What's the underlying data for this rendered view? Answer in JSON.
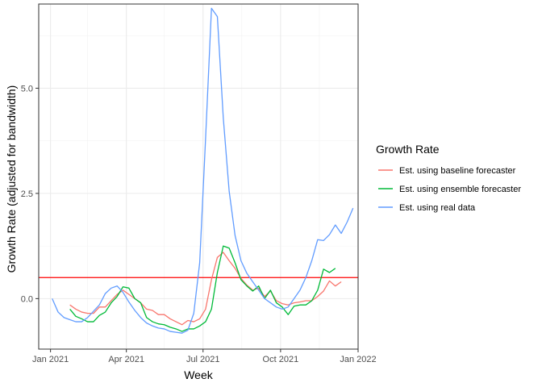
{
  "chart_data": {
    "type": "line",
    "xlabel": "Week",
    "ylabel": "Growth Rate (adjusted for bandwidth)",
    "x_ticks": [
      "Jan 2021",
      "Apr 2021",
      "Jul 2021",
      "Oct 2021",
      "Jan 2022"
    ],
    "y_ticks": [
      "0.0",
      "2.5",
      "5.0"
    ],
    "xlim": [
      "2020-12-18",
      "2022-01-01"
    ],
    "ylim": [
      -1.2,
      7.0
    ],
    "grid": true,
    "legend_title": "Growth Rate",
    "legend_position": "right",
    "hline": {
      "y": 0.5,
      "color": "#ff0000"
    },
    "series": [
      {
        "name": "Est. using baseline forecaster",
        "color": "#f8766d",
        "points": [
          [
            "2021-01-24",
            -0.15
          ],
          [
            "2021-01-31",
            -0.25
          ],
          [
            "2021-02-07",
            -0.32
          ],
          [
            "2021-02-14",
            -0.35
          ],
          [
            "2021-02-21",
            -0.35
          ],
          [
            "2021-02-28",
            -0.2
          ],
          [
            "2021-03-07",
            -0.2
          ],
          [
            "2021-03-14",
            -0.05
          ],
          [
            "2021-03-21",
            0.1
          ],
          [
            "2021-03-28",
            0.2
          ],
          [
            "2021-04-04",
            0.1
          ],
          [
            "2021-04-11",
            0.0
          ],
          [
            "2021-04-18",
            -0.1
          ],
          [
            "2021-04-25",
            -0.25
          ],
          [
            "2021-05-02",
            -0.28
          ],
          [
            "2021-05-09",
            -0.38
          ],
          [
            "2021-05-16",
            -0.38
          ],
          [
            "2021-05-23",
            -0.48
          ],
          [
            "2021-05-30",
            -0.55
          ],
          [
            "2021-06-06",
            -0.62
          ],
          [
            "2021-06-13",
            -0.52
          ],
          [
            "2021-06-20",
            -0.55
          ],
          [
            "2021-06-27",
            -0.48
          ],
          [
            "2021-07-04",
            -0.25
          ],
          [
            "2021-07-11",
            0.45
          ],
          [
            "2021-07-18",
            0.98
          ],
          [
            "2021-07-25",
            1.1
          ],
          [
            "2021-08-01",
            0.9
          ],
          [
            "2021-08-08",
            0.72
          ],
          [
            "2021-08-15",
            0.48
          ],
          [
            "2021-08-22",
            0.32
          ],
          [
            "2021-08-29",
            0.2
          ],
          [
            "2021-09-05",
            0.25
          ],
          [
            "2021-09-12",
            0.05
          ],
          [
            "2021-09-19",
            0.18
          ],
          [
            "2021-09-26",
            -0.05
          ],
          [
            "2021-10-03",
            -0.12
          ],
          [
            "2021-10-10",
            -0.15
          ],
          [
            "2021-10-17",
            -0.1
          ],
          [
            "2021-10-24",
            -0.08
          ],
          [
            "2021-10-31",
            -0.05
          ],
          [
            "2021-11-07",
            -0.05
          ],
          [
            "2021-11-14",
            0.05
          ],
          [
            "2021-11-21",
            0.18
          ],
          [
            "2021-11-28",
            0.42
          ],
          [
            "2021-12-05",
            0.3
          ],
          [
            "2021-12-12",
            0.4
          ]
        ]
      },
      {
        "name": "Est. using ensemble forecaster",
        "color": "#00ba38",
        "points": [
          [
            "2021-01-24",
            -0.25
          ],
          [
            "2021-01-31",
            -0.42
          ],
          [
            "2021-02-07",
            -0.48
          ],
          [
            "2021-02-14",
            -0.55
          ],
          [
            "2021-02-21",
            -0.55
          ],
          [
            "2021-02-28",
            -0.4
          ],
          [
            "2021-03-07",
            -0.32
          ],
          [
            "2021-03-14",
            -0.1
          ],
          [
            "2021-03-21",
            0.05
          ],
          [
            "2021-03-28",
            0.28
          ],
          [
            "2021-04-04",
            0.25
          ],
          [
            "2021-04-11",
            0.0
          ],
          [
            "2021-04-18",
            -0.1
          ],
          [
            "2021-04-25",
            -0.45
          ],
          [
            "2021-05-02",
            -0.55
          ],
          [
            "2021-05-09",
            -0.6
          ],
          [
            "2021-05-16",
            -0.62
          ],
          [
            "2021-05-23",
            -0.68
          ],
          [
            "2021-05-30",
            -0.72
          ],
          [
            "2021-06-06",
            -0.78
          ],
          [
            "2021-06-13",
            -0.72
          ],
          [
            "2021-06-20",
            -0.72
          ],
          [
            "2021-06-27",
            -0.65
          ],
          [
            "2021-07-04",
            -0.55
          ],
          [
            "2021-07-11",
            -0.25
          ],
          [
            "2021-07-18",
            0.62
          ],
          [
            "2021-07-25",
            1.25
          ],
          [
            "2021-08-01",
            1.2
          ],
          [
            "2021-08-08",
            0.85
          ],
          [
            "2021-08-15",
            0.45
          ],
          [
            "2021-08-22",
            0.3
          ],
          [
            "2021-08-29",
            0.18
          ],
          [
            "2021-09-05",
            0.3
          ],
          [
            "2021-09-12",
            0.0
          ],
          [
            "2021-09-19",
            0.2
          ],
          [
            "2021-09-26",
            -0.1
          ],
          [
            "2021-10-03",
            -0.2
          ],
          [
            "2021-10-10",
            -0.38
          ],
          [
            "2021-10-17",
            -0.18
          ],
          [
            "2021-10-24",
            -0.15
          ],
          [
            "2021-10-31",
            -0.15
          ],
          [
            "2021-11-07",
            -0.05
          ],
          [
            "2021-11-14",
            0.2
          ],
          [
            "2021-11-21",
            0.7
          ],
          [
            "2021-11-28",
            0.62
          ],
          [
            "2021-12-05",
            0.72
          ]
        ]
      },
      {
        "name": "Est. using real data",
        "color": "#619cff",
        "points": [
          [
            "2021-01-03",
            0.0
          ],
          [
            "2021-01-10",
            -0.32
          ],
          [
            "2021-01-17",
            -0.45
          ],
          [
            "2021-01-24",
            -0.5
          ],
          [
            "2021-01-31",
            -0.55
          ],
          [
            "2021-02-07",
            -0.55
          ],
          [
            "2021-02-14",
            -0.45
          ],
          [
            "2021-02-21",
            -0.3
          ],
          [
            "2021-02-28",
            -0.15
          ],
          [
            "2021-03-07",
            0.12
          ],
          [
            "2021-03-14",
            0.25
          ],
          [
            "2021-03-21",
            0.3
          ],
          [
            "2021-03-28",
            0.15
          ],
          [
            "2021-04-04",
            -0.08
          ],
          [
            "2021-04-11",
            -0.28
          ],
          [
            "2021-04-18",
            -0.45
          ],
          [
            "2021-04-25",
            -0.58
          ],
          [
            "2021-05-02",
            -0.65
          ],
          [
            "2021-05-09",
            -0.7
          ],
          [
            "2021-05-16",
            -0.72
          ],
          [
            "2021-05-23",
            -0.78
          ],
          [
            "2021-05-30",
            -0.8
          ],
          [
            "2021-06-06",
            -0.82
          ],
          [
            "2021-06-13",
            -0.75
          ],
          [
            "2021-06-20",
            -0.35
          ],
          [
            "2021-06-27",
            0.85
          ],
          [
            "2021-07-04",
            3.8
          ],
          [
            "2021-07-11",
            6.9
          ],
          [
            "2021-07-18",
            6.7
          ],
          [
            "2021-07-25",
            4.3
          ],
          [
            "2021-08-01",
            2.55
          ],
          [
            "2021-08-08",
            1.5
          ],
          [
            "2021-08-15",
            0.9
          ],
          [
            "2021-08-22",
            0.6
          ],
          [
            "2021-08-29",
            0.4
          ],
          [
            "2021-09-05",
            0.2
          ],
          [
            "2021-09-12",
            0.0
          ],
          [
            "2021-09-19",
            -0.1
          ],
          [
            "2021-09-26",
            -0.2
          ],
          [
            "2021-10-03",
            -0.25
          ],
          [
            "2021-10-10",
            -0.2
          ],
          [
            "2021-10-17",
            0.0
          ],
          [
            "2021-10-24",
            0.2
          ],
          [
            "2021-10-31",
            0.5
          ],
          [
            "2021-11-07",
            0.9
          ],
          [
            "2021-11-14",
            1.4
          ],
          [
            "2021-11-21",
            1.38
          ],
          [
            "2021-11-28",
            1.52
          ],
          [
            "2021-12-05",
            1.75
          ],
          [
            "2021-12-12",
            1.55
          ],
          [
            "2021-12-19",
            1.82
          ],
          [
            "2021-12-26",
            2.15
          ]
        ]
      }
    ]
  }
}
